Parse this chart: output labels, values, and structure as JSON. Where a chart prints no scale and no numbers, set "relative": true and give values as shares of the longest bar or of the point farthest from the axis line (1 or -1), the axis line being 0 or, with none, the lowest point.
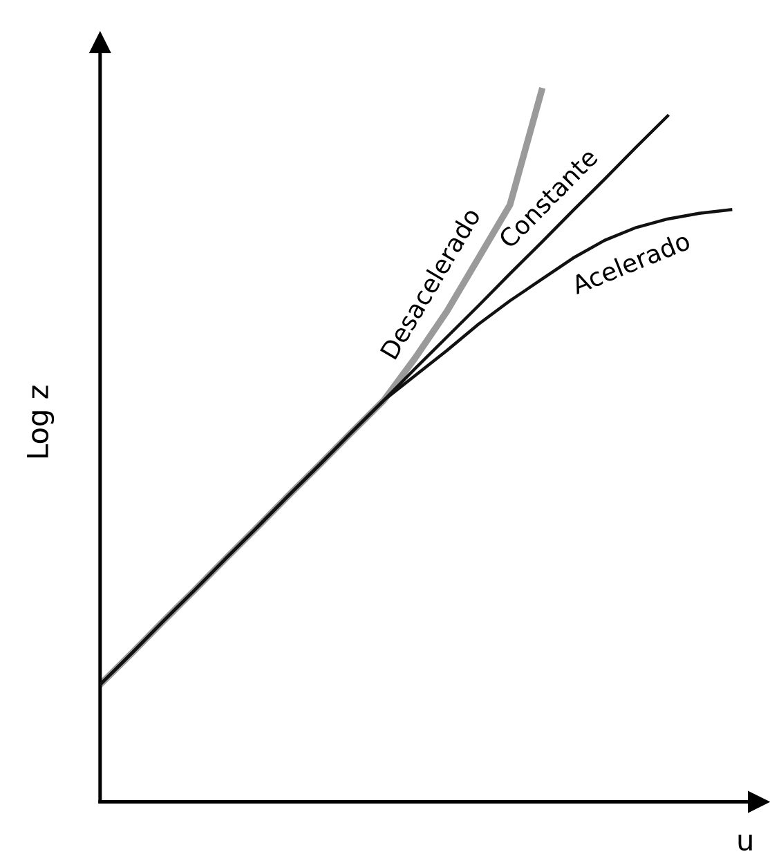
{
  "chart_data": {
    "type": "line",
    "relative": true,
    "xlabel": "u",
    "ylabel": "Log z",
    "legend": false,
    "marker": "none",
    "line_style": "solid",
    "categories": [
      null,
      null,
      null,
      null,
      null,
      null,
      null,
      null,
      null,
      null,
      null,
      null,
      null,
      null,
      null,
      null,
      null,
      null,
      null,
      null,
      null
    ],
    "series": [
      {
        "name": "Desacelerado",
        "color": "#9a9a9a",
        "values": [
          0.165,
          0.209,
          0.254,
          0.298,
          0.343,
          0.387,
          0.432,
          0.476,
          0.521,
          0.565,
          0.625,
          0.69,
          0.765,
          0.84,
          1.0,
          null,
          null,
          null,
          null,
          null,
          null
        ]
      },
      {
        "name": "Constante",
        "color": "#111111",
        "values": [
          0.165,
          0.209,
          0.254,
          0.298,
          0.343,
          0.387,
          0.432,
          0.476,
          0.521,
          0.565,
          0.61,
          0.654,
          0.698,
          0.743,
          0.787,
          0.832,
          0.876,
          0.921,
          0.965,
          null,
          null
        ]
      },
      {
        "name": "Acelerado",
        "color": "#111111",
        "values": [
          0.165,
          0.209,
          0.254,
          0.298,
          0.343,
          0.387,
          0.432,
          0.476,
          0.521,
          0.565,
          0.6,
          0.635,
          0.672,
          0.705,
          0.735,
          0.765,
          0.79,
          0.808,
          0.82,
          0.828,
          0.833
        ]
      }
    ]
  }
}
